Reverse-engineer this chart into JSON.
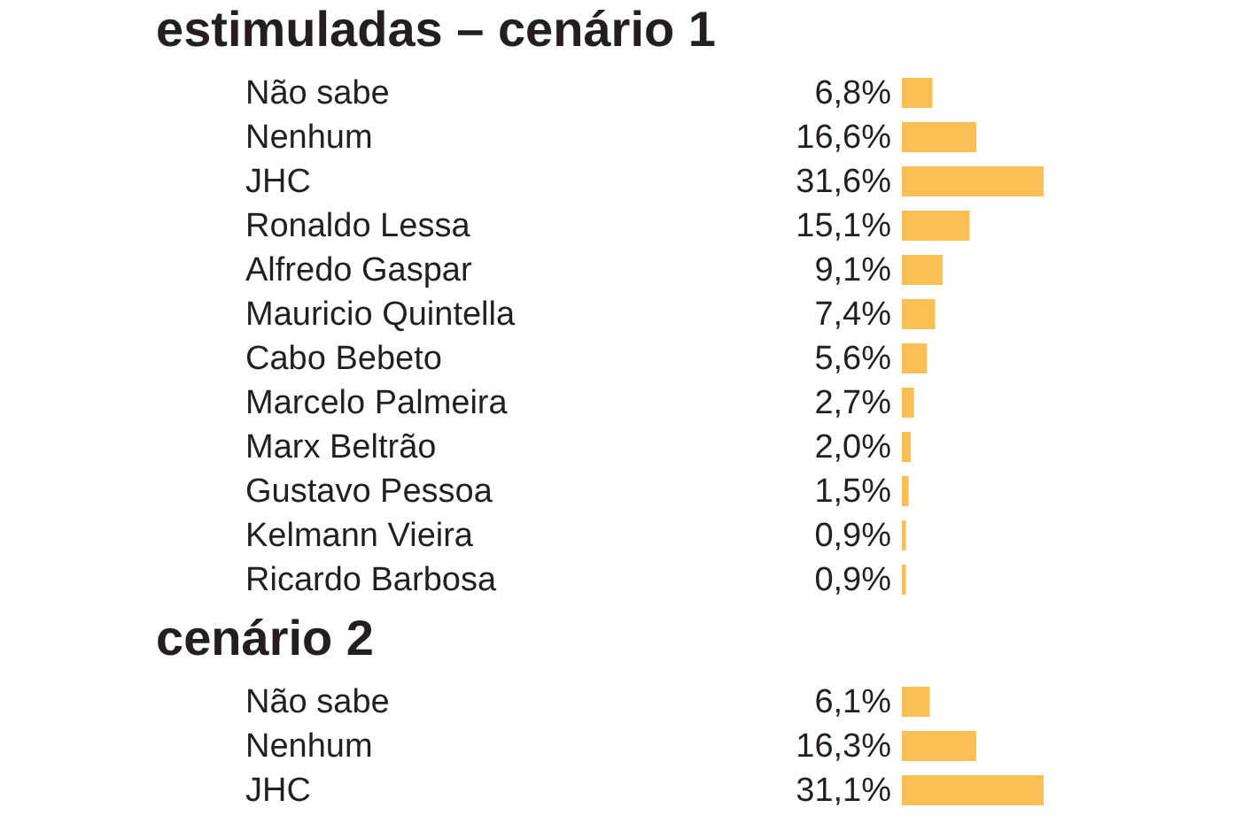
{
  "chart_data": [
    {
      "type": "bar",
      "orientation": "horizontal",
      "title": "estimuladas – cenário 1",
      "color": "#fcbf55",
      "categories": [
        "Não sabe",
        "Nenhum",
        "JHC",
        "Ronaldo Lessa",
        "Alfredo Gaspar",
        "Mauricio Quintella",
        "Cabo Bebeto",
        "Marcelo Palmeira",
        "Marx Beltrão",
        "Gustavo Pessoa",
        "Kelmann Vieira",
        "Ricardo Barbosa"
      ],
      "values": [
        6.8,
        16.6,
        31.6,
        15.1,
        9.1,
        7.4,
        5.6,
        2.7,
        2.0,
        1.5,
        0.9,
        0.9
      ],
      "value_labels": [
        "6,8%",
        "16,6%",
        "31,6%",
        "15,1%",
        "9,1%",
        "7,4%",
        "5,6%",
        "2,7%",
        "2,0%",
        "1,5%",
        "0,9%",
        "0,9%"
      ]
    },
    {
      "type": "bar",
      "orientation": "horizontal",
      "title": "cenário 2",
      "color": "#fcbf55",
      "categories": [
        "Não sabe",
        "Nenhum",
        "JHC"
      ],
      "values": [
        6.1,
        16.3,
        31.1
      ],
      "value_labels": [
        "6,1%",
        "16,3%",
        "31,1%"
      ]
    }
  ]
}
